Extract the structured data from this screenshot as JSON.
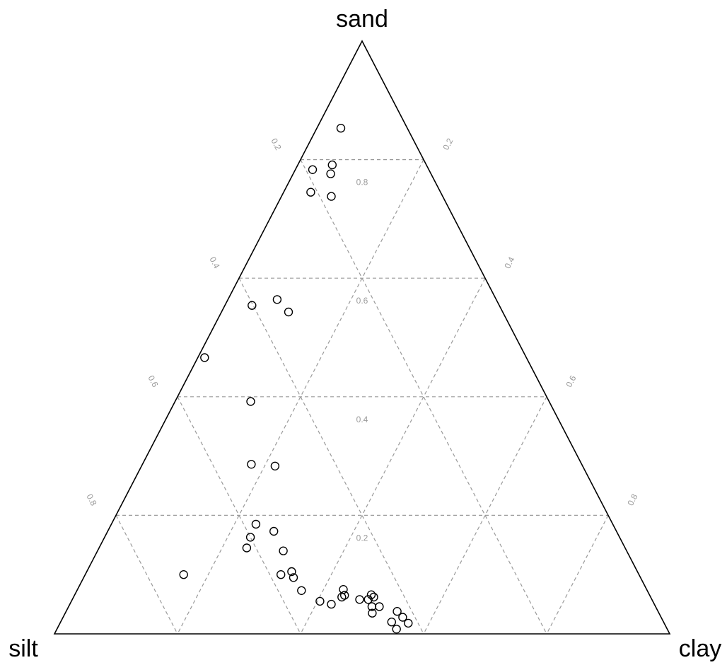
{
  "chart_data": {
    "type": "scatter",
    "subtype": "ternary",
    "axes": {
      "top": "sand",
      "left": "silt",
      "right": "clay"
    },
    "grid": true,
    "grid_levels": [
      0.2,
      0.4,
      0.6,
      0.8
    ],
    "tick_labels": {
      "left_edge": [
        "0.2",
        "0.4",
        "0.6",
        "0.8"
      ],
      "right_edge": [
        "0.2",
        "0.4",
        "0.6",
        "0.8"
      ],
      "center": [
        "0.8",
        "0.6",
        "0.4",
        "0.2"
      ]
    },
    "points": [
      {
        "sand": 0.853,
        "silt": 0.108,
        "clay": 0.039
      },
      {
        "sand": 0.791,
        "silt": 0.153,
        "clay": 0.056
      },
      {
        "sand": 0.783,
        "silt": 0.189,
        "clay": 0.028
      },
      {
        "sand": 0.776,
        "silt": 0.163,
        "clay": 0.061
      },
      {
        "sand": 0.745,
        "silt": 0.211,
        "clay": 0.044
      },
      {
        "sand": 0.738,
        "silt": 0.181,
        "clay": 0.081
      },
      {
        "sand": 0.564,
        "silt": 0.356,
        "clay": 0.08
      },
      {
        "sand": 0.554,
        "silt": 0.402,
        "clay": 0.044
      },
      {
        "sand": 0.543,
        "silt": 0.348,
        "clay": 0.109
      },
      {
        "sand": 0.466,
        "silt": 0.523,
        "clay": 0.011
      },
      {
        "sand": 0.392,
        "silt": 0.485,
        "clay": 0.123
      },
      {
        "sand": 0.286,
        "silt": 0.537,
        "clay": 0.177
      },
      {
        "sand": 0.283,
        "silt": 0.5,
        "clay": 0.217
      },
      {
        "sand": 0.185,
        "silt": 0.58,
        "clay": 0.235
      },
      {
        "sand": 0.163,
        "silt": 0.6,
        "clay": 0.237
      },
      {
        "sand": 0.173,
        "silt": 0.557,
        "clay": 0.27
      },
      {
        "sand": 0.145,
        "silt": 0.615,
        "clay": 0.24
      },
      {
        "sand": 0.14,
        "silt": 0.558,
        "clay": 0.302
      },
      {
        "sand": 0.1,
        "silt": 0.74,
        "clay": 0.16
      },
      {
        "sand": 0.1,
        "silt": 0.582,
        "clay": 0.318
      },
      {
        "sand": 0.105,
        "silt": 0.562,
        "clay": 0.333
      },
      {
        "sand": 0.095,
        "silt": 0.564,
        "clay": 0.341
      },
      {
        "sand": 0.073,
        "silt": 0.562,
        "clay": 0.365
      },
      {
        "sand": 0.055,
        "silt": 0.541,
        "clay": 0.404
      },
      {
        "sand": 0.075,
        "silt": 0.493,
        "clay": 0.432
      },
      {
        "sand": 0.065,
        "silt": 0.496,
        "clay": 0.439
      },
      {
        "sand": 0.062,
        "silt": 0.502,
        "clay": 0.436
      },
      {
        "sand": 0.05,
        "silt": 0.525,
        "clay": 0.425
      },
      {
        "sand": 0.062,
        "silt": 0.45,
        "clay": 0.488
      },
      {
        "sand": 0.058,
        "silt": 0.475,
        "clay": 0.467
      },
      {
        "sand": 0.058,
        "silt": 0.461,
        "clay": 0.481
      },
      {
        "sand": 0.066,
        "silt": 0.452,
        "clay": 0.482
      },
      {
        "sand": 0.046,
        "silt": 0.461,
        "clay": 0.493
      },
      {
        "sand": 0.035,
        "silt": 0.466,
        "clay": 0.499
      },
      {
        "sand": 0.046,
        "silt": 0.449,
        "clay": 0.505
      },
      {
        "sand": 0.038,
        "silt": 0.424,
        "clay": 0.538
      },
      {
        "sand": 0.028,
        "silt": 0.42,
        "clay": 0.552
      },
      {
        "sand": 0.02,
        "silt": 0.442,
        "clay": 0.538
      },
      {
        "sand": 0.018,
        "silt": 0.416,
        "clay": 0.566
      },
      {
        "sand": 0.008,
        "silt": 0.44,
        "clay": 0.552
      }
    ]
  }
}
